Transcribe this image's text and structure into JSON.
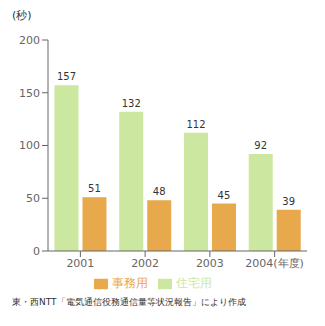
{
  "chart_data": {
    "type": "bar",
    "categories": [
      "2001",
      "2002",
      "2003",
      "2004(年度)"
    ],
    "series": [
      {
        "name": "住宅用",
        "color": "#cce8a0",
        "values": [
          157,
          132,
          112,
          92
        ]
      },
      {
        "name": "事務用",
        "color": "#e8a84c",
        "values": [
          51,
          48,
          45,
          39
        ]
      }
    ],
    "ylabel": "(秒)",
    "annotations": [
      "東・西NTT「電気通信役務通信量等状況報告」により作成"
    ],
    "ylim": [
      0,
      200
    ],
    "yticks": [
      0,
      50,
      100,
      150,
      200
    ],
    "grid": false,
    "legend": "bottom",
    "data_labels": true
  }
}
